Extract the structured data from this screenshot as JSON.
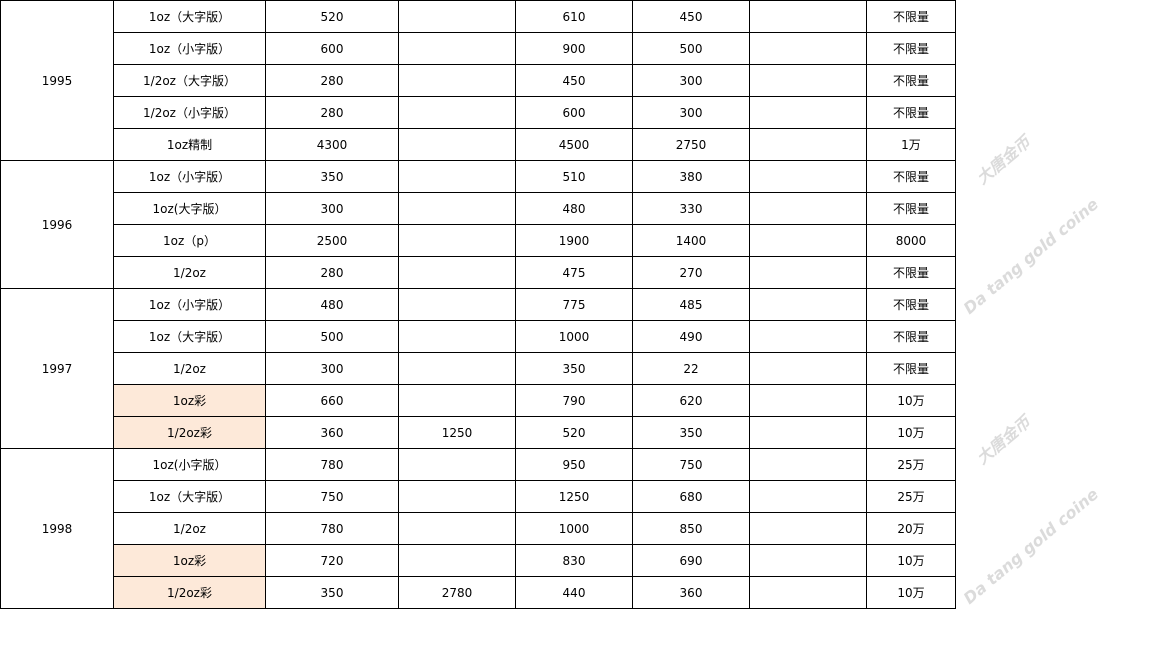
{
  "colors": {
    "highlight": "#fde9d9",
    "border": "#000000"
  },
  "watermark": {
    "cn": "大唐金币",
    "en": "Da tang gold coine"
  },
  "groups": [
    {
      "year": "1995",
      "rows": [
        {
          "name": "1oz（大字版）",
          "c1": "520",
          "c2": "",
          "c3": "610",
          "c4": "450",
          "c5": "",
          "c6": "不限量",
          "highlight": false
        },
        {
          "name": "1oz（小字版）",
          "c1": "600",
          "c2": "",
          "c3": "900",
          "c4": "500",
          "c5": "",
          "c6": "不限量",
          "highlight": false
        },
        {
          "name": "1/2oz（大字版）",
          "c1": "280",
          "c2": "",
          "c3": "450",
          "c4": "300",
          "c5": "",
          "c6": "不限量",
          "highlight": false
        },
        {
          "name": "1/2oz（小字版）",
          "c1": "280",
          "c2": "",
          "c3": "600",
          "c4": "300",
          "c5": "",
          "c6": "不限量",
          "highlight": false
        },
        {
          "name": "1oz精制",
          "c1": "4300",
          "c2": "",
          "c3": "4500",
          "c4": "2750",
          "c5": "",
          "c6": "1万",
          "highlight": false
        }
      ]
    },
    {
      "year": "1996",
      "rows": [
        {
          "name": "1oz（小字版）",
          "c1": "350",
          "c2": "",
          "c3": "510",
          "c4": "380",
          "c5": "",
          "c6": "不限量",
          "highlight": false
        },
        {
          "name": "1oz(大字版）",
          "c1": "300",
          "c2": "",
          "c3": "480",
          "c4": "330",
          "c5": "",
          "c6": "不限量",
          "highlight": false
        },
        {
          "name": "1oz（p）",
          "c1": "2500",
          "c2": "",
          "c3": "1900",
          "c4": "1400",
          "c5": "",
          "c6": "8000",
          "highlight": false
        },
        {
          "name": "1/2oz",
          "c1": "280",
          "c2": "",
          "c3": "475",
          "c4": "270",
          "c5": "",
          "c6": "不限量",
          "highlight": false
        }
      ]
    },
    {
      "year": "1997",
      "rows": [
        {
          "name": "1oz（小字版）",
          "c1": "480",
          "c2": "",
          "c3": "775",
          "c4": "485",
          "c5": "",
          "c6": "不限量",
          "highlight": false
        },
        {
          "name": "1oz（大字版）",
          "c1": "500",
          "c2": "",
          "c3": "1000",
          "c4": "490",
          "c5": "",
          "c6": "不限量",
          "highlight": false
        },
        {
          "name": "1/2oz",
          "c1": "300",
          "c2": "",
          "c3": "350",
          "c4": "22",
          "c5": "",
          "c6": "不限量",
          "highlight": false
        },
        {
          "name": "1oz彩",
          "c1": "660",
          "c2": "",
          "c3": "790",
          "c4": "620",
          "c5": "",
          "c6": "10万",
          "highlight": true
        },
        {
          "name": "1/2oz彩",
          "c1": "360",
          "c2": "1250",
          "c3": "520",
          "c4": "350",
          "c5": "",
          "c6": "10万",
          "highlight": true
        }
      ]
    },
    {
      "year": "1998",
      "rows": [
        {
          "name": "1oz(小字版）",
          "c1": "780",
          "c2": "",
          "c3": "950",
          "c4": "750",
          "c5": "",
          "c6": "25万",
          "highlight": false
        },
        {
          "name": "1oz（大字版）",
          "c1": "750",
          "c2": "",
          "c3": "1250",
          "c4": "680",
          "c5": "",
          "c6": "25万",
          "highlight": false
        },
        {
          "name": "1/2oz",
          "c1": "780",
          "c2": "",
          "c3": "1000",
          "c4": "850",
          "c5": "",
          "c6": "20万",
          "highlight": false
        },
        {
          "name": "1oz彩",
          "c1": "720",
          "c2": "",
          "c3": "830",
          "c4": "690",
          "c5": "",
          "c6": "10万",
          "highlight": true
        },
        {
          "name": "1/2oz彩",
          "c1": "350",
          "c2": "2780",
          "c3": "440",
          "c4": "360",
          "c5": "",
          "c6": "10万",
          "highlight": true
        }
      ]
    }
  ]
}
